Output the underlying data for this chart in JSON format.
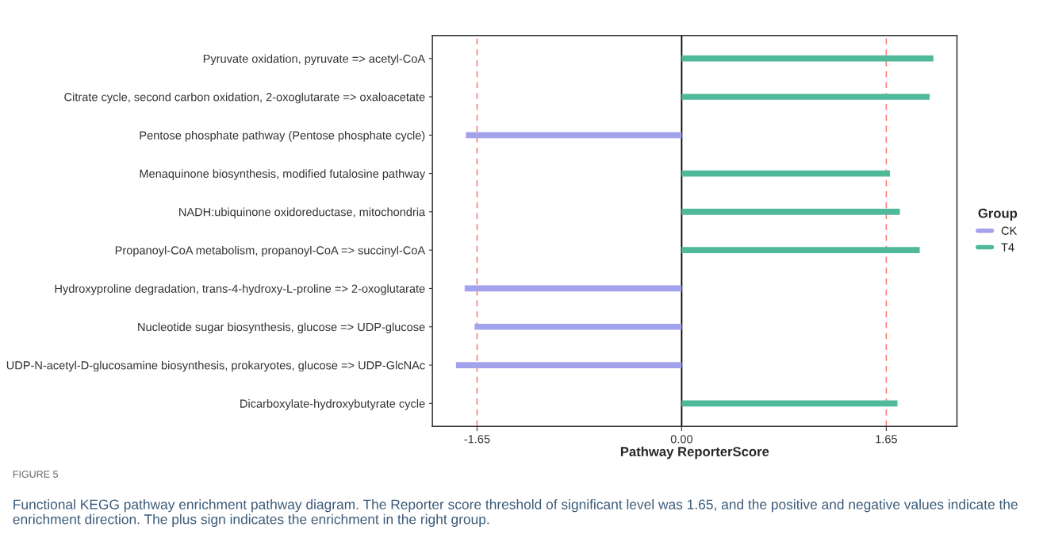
{
  "chart_data": {
    "type": "bar",
    "orientation": "horizontal",
    "categories": [
      "Pyruvate oxidation, pyruvate => acetyl-CoA",
      "Citrate cycle, second carbon oxidation, 2-oxoglutarate => oxaloacetate",
      "Pentose phosphate pathway (Pentose phosphate cycle)",
      "Menaquinone biosynthesis, modified futalosine pathway",
      "NADH:ubiquinone oxidoreductase, mitochondria",
      "Propanoyl-CoA metabolism, propanoyl-CoA => succinyl-CoA",
      "Hydroxyproline degradation, trans-4-hydroxy-L-proline => 2-oxoglutarate",
      "Nucleotide sugar biosynthesis, glucose => UDP-glucose",
      "UDP-N-acetyl-D-glucosamine biosynthesis, prokaryotes, glucose => UDP-GlcNAc",
      "Dicarboxylate-hydroxybutyrate cycle"
    ],
    "series": [
      {
        "name": "CK",
        "color": "#a3a2ec",
        "values": [
          null,
          null,
          -1.74,
          null,
          null,
          null,
          -1.75,
          -1.67,
          -1.82,
          null
        ]
      },
      {
        "name": "T4",
        "color": "#4fb99a",
        "values": [
          2.03,
          2.0,
          null,
          1.68,
          1.76,
          1.92,
          null,
          null,
          null,
          1.74
        ]
      }
    ],
    "legend_title": "Group",
    "legend": "right",
    "xlabel": "Pathway ReporterScore",
    "xlim": [
      -2.01,
      2.22
    ],
    "xticks": [
      {
        "value": -1.65,
        "label": "-1.65"
      },
      {
        "value": 0,
        "label": "0.00"
      },
      {
        "value": 1.65,
        "label": "1.65"
      }
    ],
    "ref_lines": [
      {
        "axis": "x",
        "value": -1.65,
        "color": "#f8766d",
        "line_style": "dashed"
      },
      {
        "axis": "x",
        "value": 1.65,
        "color": "#f8766d",
        "line_style": "dashed"
      },
      {
        "axis": "x",
        "value": 0,
        "color": "#000000",
        "line_style": "solid"
      }
    ],
    "annotations": [
      "FIGURE 5",
      "Functional KEGG pathway enrichment pathway diagram. The Reporter score threshold of significant level was 1.65, and the positive and negative values indicate the enrichment direction. The plus sign indicates the enrichment in the right group."
    ]
  }
}
